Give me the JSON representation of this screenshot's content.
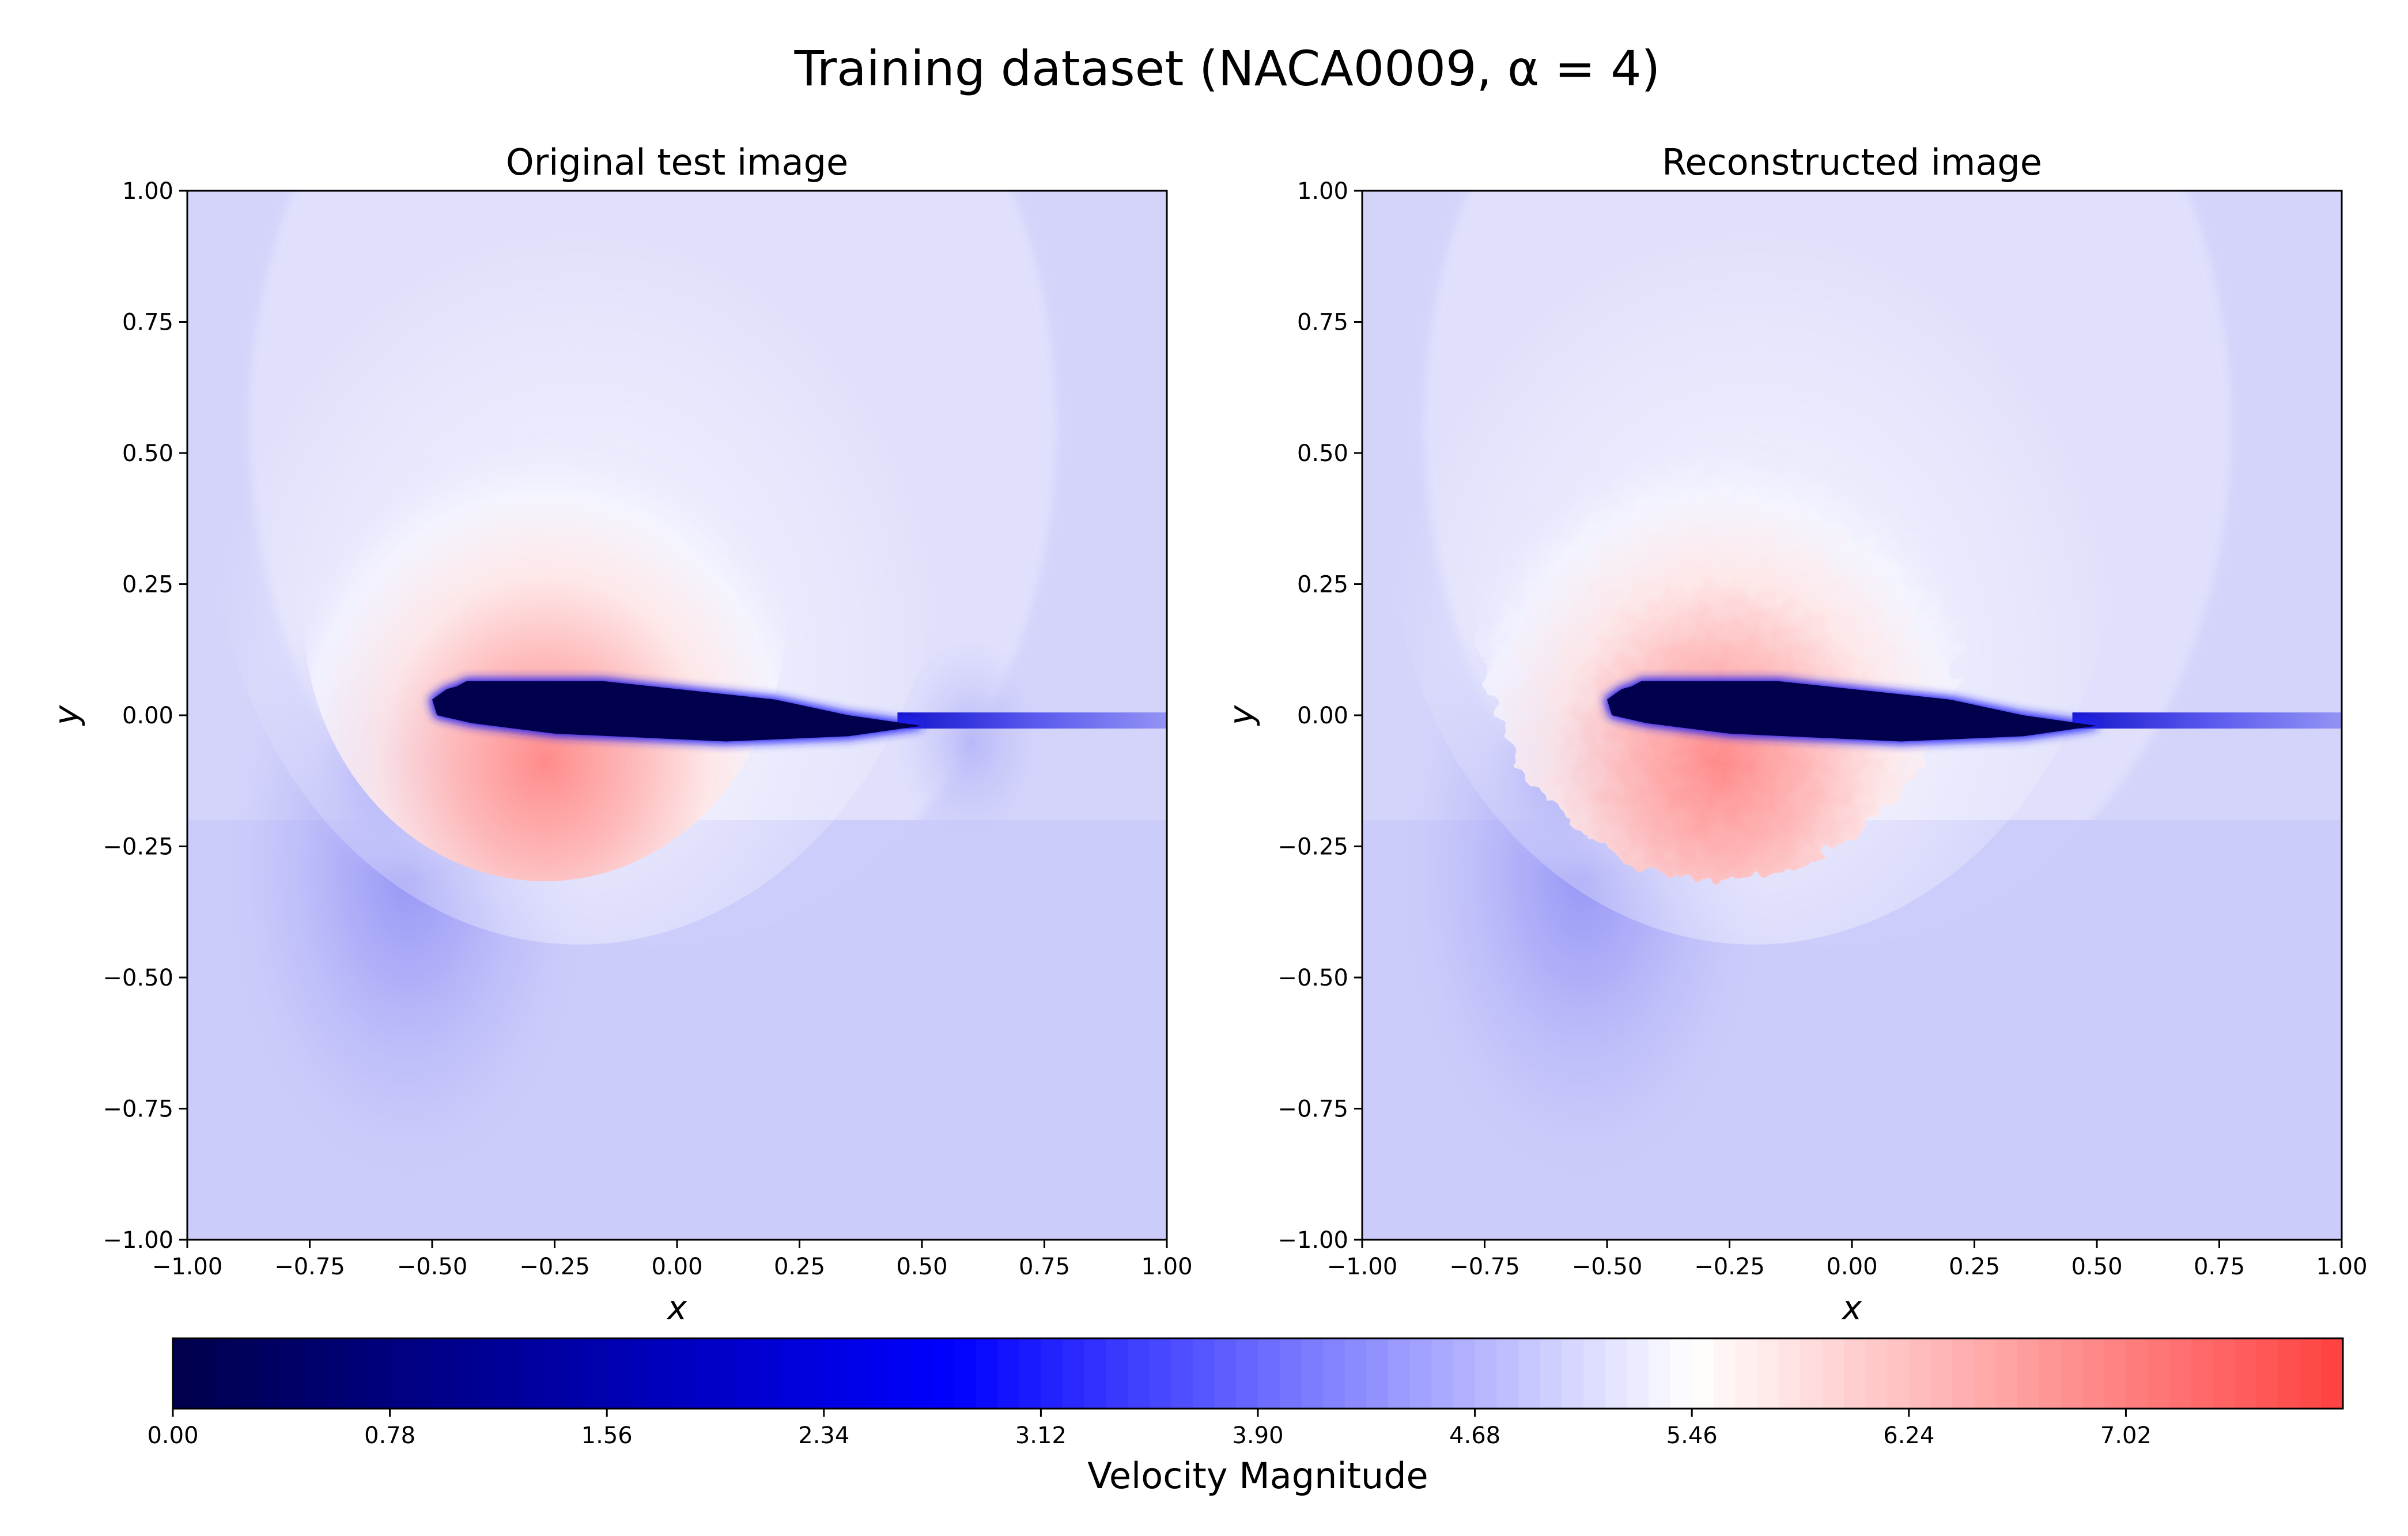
{
  "figure": {
    "title": "Training dataset (NACA0009, α = 4)"
  },
  "chart_data": [
    {
      "type": "heatmap",
      "title": "Original test image",
      "xlabel": "x",
      "ylabel": "y",
      "xlim": [
        -1,
        1
      ],
      "ylim": [
        -1,
        1
      ],
      "xticks": [
        "−1.00",
        "−0.75",
        "−0.50",
        "−0.25",
        "0.00",
        "0.25",
        "0.50",
        "0.75",
        "1.00"
      ],
      "yticks": [
        "−1.00",
        "−0.75",
        "−0.50",
        "−0.25",
        "0.00",
        "0.25",
        "0.50",
        "0.75",
        "1.00"
      ],
      "xtick_values": [
        -1,
        -0.75,
        -0.5,
        -0.25,
        0,
        0.25,
        0.5,
        0.75,
        1
      ],
      "ytick_values": [
        -1,
        -0.75,
        -0.5,
        -0.25,
        0,
        0.25,
        0.5,
        0.75,
        1
      ],
      "grid": false,
      "field_description": "velocity magnitude around NACA0009 airfoil, leading edge near x=-0.5, chord to about x=0.5, wake to x=1"
    },
    {
      "type": "heatmap",
      "title": "Reconstructed image",
      "xlabel": "x",
      "ylabel": "y",
      "xlim": [
        -1,
        1
      ],
      "ylim": [
        -1,
        1
      ],
      "xticks": [
        "−1.00",
        "−0.75",
        "−0.50",
        "−0.25",
        "0.00",
        "0.25",
        "0.50",
        "0.75",
        "1.00"
      ],
      "yticks": [
        "−1.00",
        "−0.75",
        "−0.50",
        "−0.25",
        "0.00",
        "0.25",
        "0.50",
        "0.75",
        "1.00"
      ],
      "xtick_values": [
        -1,
        -0.75,
        -0.5,
        -0.25,
        0,
        0.25,
        0.5,
        0.75,
        1
      ],
      "ytick_values": [
        -1,
        -0.75,
        -0.5,
        -0.25,
        0,
        0.25,
        0.5,
        0.75,
        1
      ],
      "grid": false
    }
  ],
  "colorbar": {
    "label": "Velocity Magnitude",
    "orientation": "horizontal",
    "placement": "bottom",
    "range": [
      0,
      7.8
    ],
    "ticks": [
      "0.00",
      "0.78",
      "1.56",
      "2.34",
      "3.12",
      "3.90",
      "4.68",
      "5.46",
      "6.24",
      "7.02"
    ],
    "tick_values": [
      0,
      0.78,
      1.56,
      2.34,
      3.12,
      3.9,
      4.68,
      5.46,
      6.24,
      7.02
    ],
    "colormap": "seismic",
    "colors": {
      "low": "#00004c",
      "mid_blue": "#0000ff",
      "center": "#ffffff",
      "high": "#ff4040"
    }
  }
}
